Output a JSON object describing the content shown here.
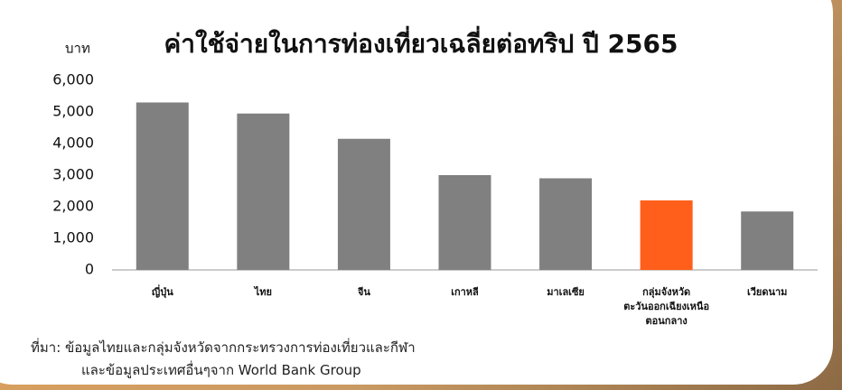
{
  "chart_data": {
    "type": "bar",
    "title": "ค่าใช้จ่ายในการท่องเที่ยวเฉลี่ยต่อทริป ปี 2565",
    "y_axis_label": "บาท",
    "categories": [
      "ญี่ปุ่น",
      "ไทย",
      "จีน",
      "เกาหลี",
      "มาเลเซีย",
      "กลุ่มจังหวัด\nตะวันออกเฉียงเหนือ\nตอนกลาง",
      "เวียดนาม"
    ],
    "values": [
      5300,
      4950,
      4150,
      3000,
      2900,
      2200,
      1850
    ],
    "colors": [
      "#808080",
      "#808080",
      "#808080",
      "#808080",
      "#808080",
      "#ff5f1a",
      "#808080"
    ],
    "ylim": [
      0,
      6000
    ],
    "yticks": [
      0,
      {
        "value": 1000,
        "label": "1,000"
      },
      {
        "value": 2000,
        "label": "2,000"
      },
      {
        "value": 3000,
        "label": "3,000"
      },
      {
        "value": 4000,
        "label": "4,000"
      },
      {
        "value": 5000,
        "label": "5,000"
      },
      {
        "value": 6000,
        "label": "6,000"
      }
    ],
    "grid": false,
    "source": [
      "ที่มา: ข้อมูลไทยและกลุ่มจังหวัดจากกระทรวงการท่องเที่ยวและกีฬา",
      "และข้อมูลประเทศอื่นๆจาก World Bank Group"
    ]
  }
}
